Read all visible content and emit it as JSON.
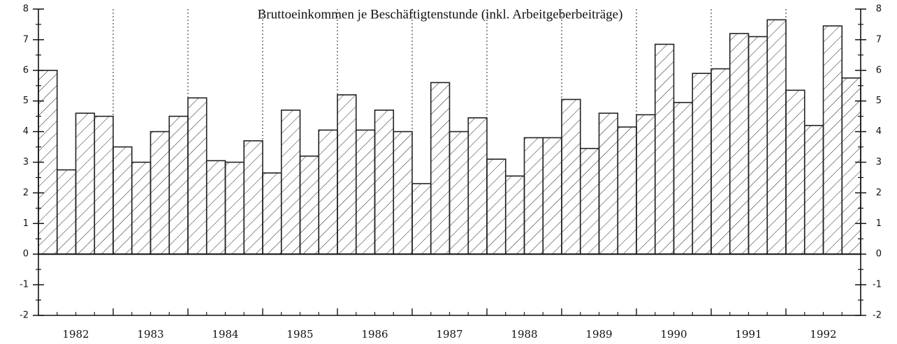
{
  "chart_data": {
    "type": "bar",
    "title": "Bruttoeinkommen je Beschäftigtenstunde (inkl. Arbeitgeberbeiträge)",
    "categories": [
      null,
      null,
      null,
      null,
      null,
      null,
      null,
      null,
      null,
      null,
      null,
      null,
      null,
      null,
      null,
      null,
      null,
      null,
      null,
      null,
      null,
      null,
      null,
      null,
      null,
      null,
      null,
      null,
      null,
      null,
      null,
      null,
      null,
      null,
      null,
      null,
      null,
      null,
      null,
      null,
      null,
      null,
      null,
      null
    ],
    "year_labels": [
      1982,
      1983,
      1984,
      1985,
      1986,
      1987,
      1988,
      1989,
      1990,
      1991,
      1992
    ],
    "values": [
      6.0,
      2.75,
      4.6,
      4.5,
      3.5,
      3.0,
      4.0,
      4.5,
      5.1,
      3.05,
      3.0,
      3.7,
      2.65,
      4.7,
      3.2,
      4.05,
      5.2,
      4.05,
      4.7,
      4.0,
      2.3,
      5.6,
      4.0,
      4.45,
      3.1,
      2.55,
      3.8,
      3.8,
      5.05,
      3.45,
      4.6,
      4.15,
      4.55,
      6.85,
      4.95,
      5.9,
      6.05,
      7.2,
      7.1,
      7.65,
      5.35,
      4.2,
      7.45,
      5.75
    ],
    "color": "#222222",
    "ylim": [
      -2,
      8
    ],
    "yticks": [
      -2,
      -1,
      0,
      1,
      2,
      3,
      4,
      5,
      6,
      7,
      8
    ],
    "y2lim": [
      -2,
      8
    ],
    "y2ticks": [
      -2,
      -1,
      0,
      1,
      2,
      3,
      4,
      5,
      6,
      7,
      8
    ]
  }
}
